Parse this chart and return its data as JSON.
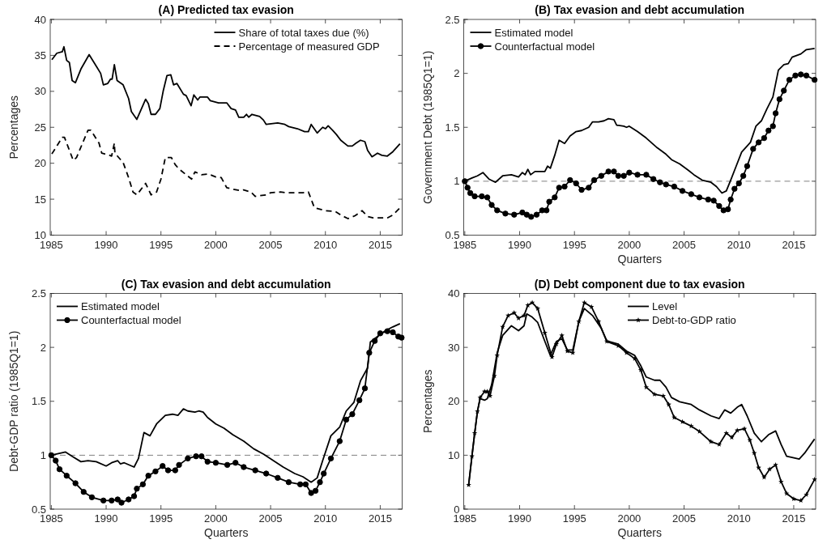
{
  "chart_data": [
    {
      "type": "line",
      "title": "(A) Predicted tax evasion",
      "ylabel": "Percentages",
      "xlim": [
        1984.9,
        2017
      ],
      "xticks": [
        1985,
        1990,
        1995,
        2000,
        2005,
        2010,
        2015
      ],
      "ylim": [
        10,
        40
      ],
      "yticks": [
        10,
        15,
        20,
        25,
        30,
        35,
        40
      ],
      "legend": "top right",
      "grid": false,
      "series": [
        {
          "name": "Share of total taxes due (%)",
          "color": "#000000",
          "line_style": "solid",
          "x": [
            1985.05,
            1985.5,
            1986.0,
            1986.15,
            1986.4,
            1986.65,
            1986.9,
            1987.2,
            1987.7,
            1988.45,
            1989.1,
            1989.5,
            1989.75,
            1990.15,
            1990.4,
            1990.55,
            1990.75,
            1991.0,
            1991.55,
            1992.05,
            1992.3,
            1992.8,
            1993.6,
            1993.85,
            1994.1,
            1994.5,
            1994.9,
            1995.2,
            1995.55,
            1995.9,
            1996.15,
            1996.45,
            1997.05,
            1997.3,
            1997.75,
            1998.0,
            1998.35,
            1998.55,
            1999.25,
            1999.5,
            2000.25,
            2001.0,
            2001.4,
            2001.8,
            2002.1,
            2002.55,
            2002.8,
            2003.0,
            2003.3,
            2004.0,
            2004.35,
            2004.6,
            2005.65,
            2006.3,
            2006.65,
            2007.45,
            2008.1,
            2008.45,
            2008.7,
            2009.25,
            2009.75,
            2010.0,
            2010.25,
            2010.65,
            2011.0,
            2011.4,
            2012.05,
            2012.45,
            2012.8,
            2013.2,
            2013.6,
            2013.85,
            2014.25,
            2014.75,
            2015.15,
            2015.65,
            2016.15,
            2016.8
          ],
          "values": [
            34.4,
            35.3,
            35.5,
            36.2,
            34.3,
            34.0,
            31.5,
            31.2,
            33.1,
            35.1,
            33.5,
            32.5,
            30.9,
            31.1,
            31.7,
            31.7,
            33.7,
            31.5,
            30.9,
            29.0,
            27.2,
            26.1,
            28.9,
            28.3,
            26.8,
            26.8,
            27.6,
            30.0,
            32.2,
            32.3,
            30.9,
            31.1,
            29.6,
            29.4,
            28.0,
            29.5,
            28.8,
            29.2,
            29.2,
            28.7,
            28.4,
            28.4,
            27.6,
            27.4,
            26.4,
            26.4,
            26.8,
            26.4,
            26.8,
            26.5,
            26.0,
            25.4,
            25.6,
            25.4,
            25.1,
            24.8,
            24.4,
            24.4,
            25.4,
            24.2,
            25.0,
            24.8,
            25.2,
            24.6,
            24.0,
            23.2,
            22.4,
            22.4,
            22.8,
            23.2,
            23.0,
            21.8,
            20.9,
            21.4,
            21.1,
            21.0,
            21.6,
            22.7
          ]
        },
        {
          "name": "Percentage of measured GDP",
          "color": "#000000",
          "line_style": "dashed",
          "x": [
            1985.05,
            1986.0,
            1986.2,
            1986.55,
            1987.0,
            1987.3,
            1988.35,
            1988.6,
            1989.35,
            1989.6,
            1990.15,
            1990.5,
            1990.75,
            1990.8,
            1991.55,
            1992.05,
            1992.45,
            1992.8,
            1993.6,
            1994.1,
            1994.6,
            1995.0,
            1995.4,
            1995.95,
            1996.3,
            1996.65,
            1997.3,
            1997.8,
            1998.1,
            1998.7,
            1999.35,
            2000.0,
            2000.5,
            2001.0,
            2001.55,
            2002.2,
            2002.55,
            2003.2,
            2003.6,
            2004.6,
            2005.0,
            2005.9,
            2006.4,
            2007.2,
            2007.95,
            2008.45,
            2009.0,
            2010.0,
            2010.9,
            2011.4,
            2012.05,
            2012.7,
            2013.35,
            2013.85,
            2014.35,
            2015.0,
            2015.65,
            2016.15,
            2016.8
          ],
          "values": [
            21.3,
            23.6,
            23.6,
            22.2,
            20.4,
            20.8,
            24.6,
            24.6,
            22.8,
            21.4,
            21.2,
            21.0,
            22.8,
            21.4,
            20.1,
            18.0,
            16.0,
            15.6,
            17.2,
            15.6,
            16.0,
            17.8,
            20.8,
            20.8,
            19.8,
            19.2,
            18.4,
            17.8,
            18.8,
            18.4,
            18.5,
            18.1,
            18.0,
            16.6,
            16.4,
            16.2,
            16.3,
            16.0,
            15.4,
            15.6,
            15.9,
            16.0,
            15.9,
            15.9,
            15.9,
            16.0,
            13.8,
            13.4,
            13.3,
            12.8,
            12.3,
            12.7,
            13.4,
            12.6,
            12.4,
            12.4,
            12.4,
            12.8,
            13.8
          ]
        }
      ]
    },
    {
      "type": "line",
      "title": "(B) Tax evasion and debt accumulation",
      "xlabel": "Quarters",
      "ylabel": "Government Debt (1985Q1=1)",
      "xlim": [
        1984.9,
        2017
      ],
      "xticks": [
        1985,
        1990,
        1995,
        2000,
        2005,
        2010,
        2015
      ],
      "ylim": [
        0.5,
        2.5
      ],
      "yticks": [
        0.5,
        1,
        1.5,
        2,
        2.5
      ],
      "legend": "top left",
      "grid": false,
      "ref_lines": [
        {
          "axis": "y",
          "value": 1,
          "color": "#808080",
          "line_style": "dashed"
        }
      ],
      "series": [
        {
          "name": "Estimated model",
          "color": "#000000",
          "line_style": "solid",
          "x": [
            1985.0,
            1985.65,
            1986.15,
            1986.65,
            1987.2,
            1987.8,
            1988.45,
            1989.25,
            1989.9,
            1990.25,
            1990.5,
            1990.75,
            1991.0,
            1991.4,
            1992.05,
            1992.3,
            1992.55,
            1992.8,
            1993.2,
            1993.6,
            1994.1,
            1994.6,
            1995.15,
            1995.65,
            1996.3,
            1996.65,
            1997.2,
            1997.7,
            1998.1,
            1998.6,
            1998.85,
            1999.5,
            1999.75,
            2000.0,
            2000.75,
            2001.55,
            2002.55,
            2003.35,
            2003.85,
            2004.6,
            2005.4,
            2005.9,
            2006.65,
            2007.45,
            2007.95,
            2008.45,
            2008.85,
            2009.25,
            2009.75,
            2010.25,
            2011.05,
            2011.55,
            2012.05,
            2012.55,
            2013.1,
            2013.6,
            2014.1,
            2014.5,
            2014.85,
            2015.65,
            2016.15,
            2016.9
          ],
          "values": [
            1.0,
            1.03,
            1.05,
            1.08,
            1.02,
            0.99,
            1.05,
            1.06,
            1.04,
            1.08,
            1.06,
            1.11,
            1.06,
            1.09,
            1.09,
            1.09,
            1.14,
            1.12,
            1.24,
            1.38,
            1.35,
            1.42,
            1.46,
            1.47,
            1.5,
            1.55,
            1.55,
            1.56,
            1.58,
            1.57,
            1.52,
            1.51,
            1.5,
            1.51,
            1.46,
            1.4,
            1.31,
            1.25,
            1.2,
            1.16,
            1.1,
            1.06,
            1.01,
            0.99,
            0.95,
            0.89,
            0.91,
            1.01,
            1.14,
            1.27,
            1.36,
            1.51,
            1.56,
            1.67,
            1.78,
            2.03,
            2.08,
            2.09,
            2.15,
            2.18,
            2.22,
            2.23
          ]
        },
        {
          "name": "Counterfactual model",
          "color": "#000000",
          "line_style": "solid",
          "marker": "circle",
          "x": [
            1985.0,
            1985.25,
            1985.5,
            1985.9,
            1986.55,
            1987.05,
            1987.45,
            1987.95,
            1988.7,
            1989.5,
            1990.25,
            1990.65,
            1991.05,
            1991.55,
            1992.05,
            1992.45,
            1992.7,
            1993.2,
            1993.6,
            1994.1,
            1994.6,
            1995.15,
            1995.65,
            1996.3,
            1996.8,
            1997.45,
            1998.1,
            1998.6,
            1999.0,
            1999.5,
            2000.0,
            2000.75,
            2001.55,
            2002.2,
            2002.8,
            2003.35,
            2004.1,
            2004.85,
            2005.65,
            2006.4,
            2007.2,
            2007.7,
            2008.2,
            2008.6,
            2009.0,
            2009.25,
            2009.6,
            2010.0,
            2010.4,
            2010.75,
            2011.3,
            2011.8,
            2012.3,
            2012.7,
            2013.1,
            2013.35,
            2013.7,
            2014.1,
            2014.6,
            2015.15,
            2015.65,
            2016.15,
            2016.9
          ],
          "values": [
            1.0,
            0.94,
            0.89,
            0.86,
            0.86,
            0.85,
            0.78,
            0.73,
            0.7,
            0.69,
            0.71,
            0.69,
            0.67,
            0.69,
            0.73,
            0.73,
            0.81,
            0.85,
            0.94,
            0.95,
            1.01,
            0.98,
            0.92,
            0.94,
            1.01,
            1.05,
            1.09,
            1.09,
            1.05,
            1.05,
            1.08,
            1.06,
            1.06,
            1.02,
            0.99,
            0.97,
            0.95,
            0.91,
            0.88,
            0.85,
            0.83,
            0.82,
            0.77,
            0.73,
            0.74,
            0.83,
            0.93,
            0.98,
            1.05,
            1.14,
            1.3,
            1.36,
            1.4,
            1.47,
            1.51,
            1.63,
            1.76,
            1.84,
            1.94,
            1.98,
            1.99,
            1.98,
            1.94
          ]
        }
      ]
    },
    {
      "type": "line",
      "title": "(C) Tax evasion and debt accumulation",
      "xlabel": "Quarters",
      "ylabel": "Debt-GDP ratio (1985Q1=1)",
      "xlim": [
        1984.9,
        2017
      ],
      "xticks": [
        1985,
        1990,
        1995,
        2000,
        2005,
        2010,
        2015
      ],
      "ylim": [
        0.5,
        2.5
      ],
      "yticks": [
        0.5,
        1,
        1.5,
        2,
        2.5
      ],
      "legend": "top left",
      "grid": false,
      "ref_lines": [
        {
          "axis": "y",
          "value": 1,
          "color": "#808080",
          "line_style": "dashed"
        }
      ],
      "series": [
        {
          "name": "Estimated model",
          "color": "#000000",
          "line_style": "solid",
          "x": [
            1985.0,
            1985.4,
            1986.3,
            1986.9,
            1987.7,
            1988.35,
            1989.1,
            1990.0,
            1990.5,
            1991.05,
            1991.3,
            1991.65,
            1992.55,
            1992.95,
            1993.45,
            1994.0,
            1994.6,
            1995.4,
            1996.05,
            1996.55,
            1997.05,
            1997.45,
            1998.1,
            1998.45,
            1998.85,
            1999.25,
            2000.0,
            2000.75,
            2001.55,
            2002.55,
            2003.45,
            2004.35,
            2005.25,
            2006.15,
            2007.2,
            2007.95,
            2008.7,
            2009.25,
            2009.75,
            2010.5,
            2011.3,
            2011.9,
            2012.6,
            2013.2,
            2013.85,
            2014.1,
            2014.75,
            2015.4,
            2016.15,
            2016.8
          ],
          "values": [
            1.0,
            1.01,
            1.03,
            0.99,
            0.94,
            0.95,
            0.94,
            0.9,
            0.93,
            0.95,
            0.92,
            0.93,
            0.89,
            0.97,
            1.21,
            1.18,
            1.29,
            1.37,
            1.38,
            1.37,
            1.43,
            1.41,
            1.4,
            1.41,
            1.4,
            1.35,
            1.29,
            1.25,
            1.19,
            1.13,
            1.06,
            1.01,
            0.95,
            0.89,
            0.83,
            0.8,
            0.75,
            0.79,
            0.95,
            1.18,
            1.26,
            1.41,
            1.49,
            1.69,
            1.81,
            2.05,
            2.1,
            2.15,
            2.19,
            2.22
          ]
        },
        {
          "name": "Counterfactual model",
          "color": "#000000",
          "line_style": "solid",
          "marker": "circle",
          "x": [
            1985.0,
            1985.4,
            1985.75,
            1986.4,
            1987.2,
            1987.95,
            1988.7,
            1989.75,
            1990.5,
            1991.05,
            1991.4,
            1992.05,
            1992.55,
            1992.8,
            1993.35,
            1993.85,
            1994.5,
            1995.15,
            1995.65,
            1996.3,
            1996.65,
            1997.45,
            1998.2,
            1998.7,
            1999.25,
            2000.0,
            2001.05,
            2001.8,
            2002.55,
            2003.6,
            2004.6,
            2005.65,
            2006.65,
            2007.7,
            2008.2,
            2008.7,
            2009.1,
            2009.5,
            2009.85,
            2010.5,
            2011.3,
            2011.9,
            2012.45,
            2013.1,
            2013.6,
            2014.0,
            2014.5,
            2015.0,
            2015.65,
            2016.15,
            2016.65,
            2016.95
          ],
          "values": [
            1.0,
            0.95,
            0.87,
            0.81,
            0.74,
            0.66,
            0.61,
            0.58,
            0.58,
            0.59,
            0.56,
            0.59,
            0.62,
            0.69,
            0.73,
            0.81,
            0.85,
            0.9,
            0.86,
            0.86,
            0.91,
            0.97,
            0.99,
            0.99,
            0.94,
            0.93,
            0.91,
            0.93,
            0.89,
            0.86,
            0.83,
            0.79,
            0.75,
            0.73,
            0.73,
            0.65,
            0.67,
            0.75,
            0.83,
            0.97,
            1.13,
            1.33,
            1.38,
            1.51,
            1.62,
            1.95,
            2.06,
            2.13,
            2.15,
            2.14,
            2.1,
            2.09
          ]
        }
      ]
    },
    {
      "type": "line",
      "title": "(D) Debt component due to tax evasion",
      "xlabel": "Quarters",
      "ylabel": "Percentages",
      "xlim": [
        1984.9,
        2017
      ],
      "xticks": [
        1985,
        1990,
        1995,
        2000,
        2005,
        2010,
        2015
      ],
      "ylim": [
        0,
        40
      ],
      "yticks": [
        0,
        10,
        20,
        30,
        40
      ],
      "legend": "top right",
      "grid": false,
      "series": [
        {
          "name": "Level",
          "color": "#000000",
          "line_style": "solid",
          "x": [
            1985.35,
            1985.65,
            1985.9,
            1986.15,
            1986.4,
            1986.8,
            1987.05,
            1987.45,
            1987.95,
            1988.45,
            1989.25,
            1989.9,
            1990.4,
            1990.65,
            1991.15,
            1991.65,
            1992.3,
            1992.8,
            1993.35,
            1993.85,
            1994.35,
            1994.85,
            1995.4,
            1995.9,
            1996.65,
            1997.45,
            1997.95,
            1999.0,
            1999.75,
            2000.5,
            2001.05,
            2001.55,
            2002.3,
            2002.8,
            2003.35,
            2003.85,
            2004.6,
            2005.65,
            2006.4,
            2007.45,
            2008.2,
            2008.7,
            2009.25,
            2009.85,
            2010.25,
            2010.75,
            2011.4,
            2012.05,
            2012.7,
            2013.35,
            2013.85,
            2014.35,
            2014.85,
            2015.5,
            2016.0,
            2016.9
          ],
          "values": [
            4.5,
            9.8,
            14.1,
            18.1,
            20.5,
            20.2,
            20.5,
            23.1,
            29.0,
            32.2,
            34.0,
            33.1,
            34.0,
            36.2,
            35.6,
            34.6,
            31.1,
            28.5,
            31.1,
            31.6,
            29.5,
            29.5,
            34.8,
            37.2,
            35.9,
            33.5,
            31.2,
            30.6,
            29.3,
            28.5,
            26.6,
            24.5,
            23.9,
            23.9,
            22.6,
            20.7,
            19.9,
            19.4,
            18.4,
            17.3,
            16.8,
            18.4,
            17.8,
            18.9,
            19.4,
            17.3,
            14.1,
            12.5,
            13.8,
            14.5,
            12.0,
            9.8,
            9.6,
            9.3,
            10.4,
            13.0
          ]
        },
        {
          "name": "Debt-to-GDP ratio",
          "color": "#000000",
          "line_style": "solid",
          "marker": "star",
          "x": [
            1985.35,
            1985.65,
            1985.9,
            1986.15,
            1986.4,
            1986.8,
            1987.05,
            1987.3,
            1987.7,
            1987.95,
            1988.45,
            1988.95,
            1989.5,
            1989.9,
            1990.4,
            1990.75,
            1991.15,
            1991.65,
            1992.3,
            1992.95,
            1993.35,
            1993.85,
            1994.35,
            1994.85,
            1995.4,
            1995.9,
            1996.55,
            1997.2,
            1997.95,
            1999.0,
            1999.75,
            2000.5,
            2001.05,
            2001.55,
            2002.3,
            2003.1,
            2003.6,
            2004.1,
            2004.85,
            2005.65,
            2006.4,
            2007.45,
            2008.2,
            2008.85,
            2009.35,
            2009.85,
            2010.5,
            2011.0,
            2011.4,
            2011.8,
            2012.3,
            2012.8,
            2013.35,
            2013.85,
            2014.35,
            2015.0,
            2015.65,
            2016.15,
            2016.9
          ],
          "values": [
            4.5,
            9.8,
            14.1,
            18.1,
            20.7,
            21.8,
            21.8,
            21.0,
            24.7,
            28.5,
            33.8,
            35.9,
            36.4,
            35.4,
            35.9,
            37.8,
            38.3,
            37.2,
            32.7,
            28.2,
            30.6,
            32.2,
            29.3,
            29.0,
            34.8,
            38.3,
            37.5,
            34.8,
            31.1,
            30.3,
            29.0,
            27.9,
            25.8,
            22.6,
            21.3,
            21.0,
            19.4,
            17.0,
            16.2,
            15.4,
            14.4,
            12.5,
            12.0,
            14.1,
            13.3,
            14.6,
            14.9,
            12.8,
            10.4,
            7.7,
            5.9,
            7.4,
            8.2,
            5.1,
            2.9,
            1.9,
            1.6,
            2.7,
            5.5
          ]
        }
      ]
    }
  ]
}
